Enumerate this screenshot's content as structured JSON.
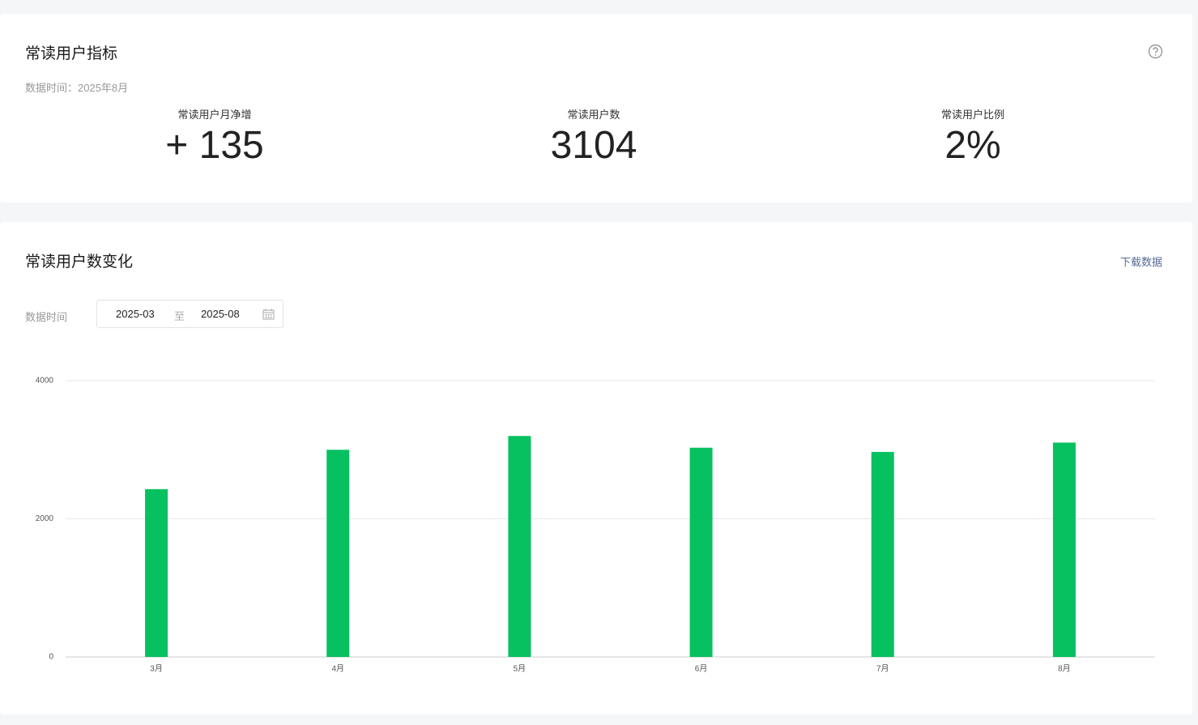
{
  "header": {
    "title": "常读用户指标",
    "data_time": "数据时间：2025年8月"
  },
  "metrics": [
    {
      "label": "常读用户月净增",
      "value": "+ 135"
    },
    {
      "label": "常读用户数",
      "value": "3104"
    },
    {
      "label": "常读用户比例",
      "value": "2%"
    }
  ],
  "chart_section": {
    "title": "常读用户数变化",
    "download": "下载数据",
    "time_label": "数据时间",
    "start": "2025-03",
    "separator": "至",
    "end": "2025-08"
  },
  "chart_data": {
    "type": "bar",
    "categories": [
      "3月",
      "4月",
      "5月",
      "6月",
      "7月",
      "8月"
    ],
    "values": [
      2430,
      3000,
      3200,
      3030,
      2969,
      3104
    ],
    "color": "#07c160",
    "ylim": [
      0,
      4000
    ],
    "yticks": [
      0,
      2000,
      4000
    ],
    "grid": true
  }
}
